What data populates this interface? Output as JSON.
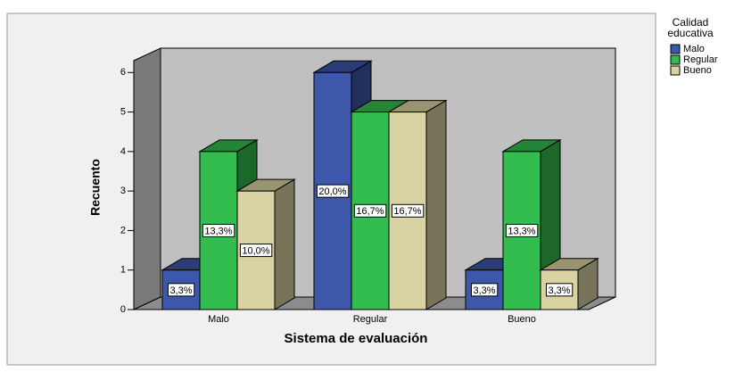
{
  "chart_data": {
    "type": "bar3d",
    "x_label": "Sistema de evaluación",
    "y_label": "Recuento",
    "legend_title": [
      "Calidad",
      "educativa"
    ],
    "legend": "right",
    "categories": [
      "Malo",
      "Regular",
      "Bueno"
    ],
    "series": [
      {
        "name": "Malo",
        "color": "#3d57aa",
        "values": [
          1,
          6,
          1
        ],
        "value_labels": [
          "3,3%",
          "20,0%",
          "3,3%"
        ]
      },
      {
        "name": "Regular",
        "color": "#33bd4e",
        "values": [
          4,
          5,
          4
        ],
        "value_labels": [
          "13,3%",
          "16,7%",
          "13,3%"
        ]
      },
      {
        "name": "Bueno",
        "color": "#d9d2a2",
        "values": [
          3,
          5,
          1
        ],
        "value_labels": [
          "10,0%",
          "16,7%",
          "3,3%"
        ]
      }
    ],
    "ylim": [
      0,
      6.3
    ],
    "yticks": [
      0,
      1,
      2,
      3,
      4,
      5,
      6
    ]
  }
}
